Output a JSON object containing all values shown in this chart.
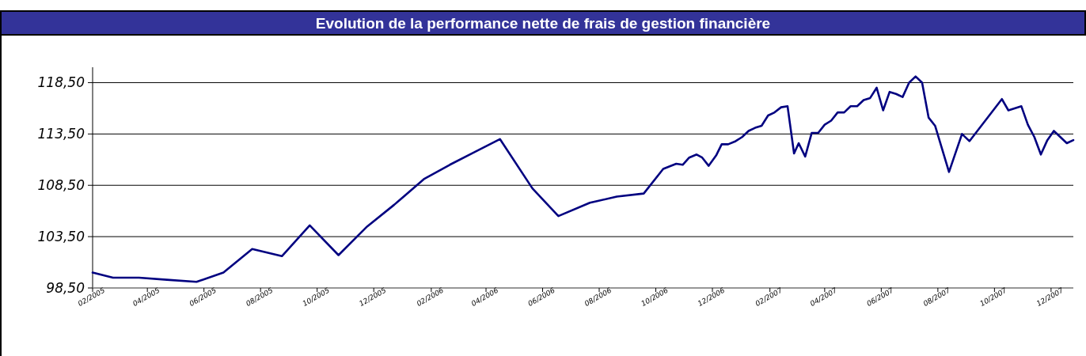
{
  "chart_data": {
    "type": "line",
    "title": "Evolution de la performance nette de frais de gestion financière",
    "x": [
      "2005-02-01",
      "2005-02-23",
      "2005-03-23",
      "2005-04-22",
      "2005-05-24",
      "2005-06-22",
      "2005-07-23",
      "2005-08-24",
      "2005-09-23",
      "2005-10-24",
      "2005-11-24",
      "2005-12-23",
      "2006-01-24",
      "2006-02-21",
      "2006-03-19",
      "2006-04-16",
      "2006-05-21",
      "2006-06-18",
      "2006-07-22",
      "2006-08-20",
      "2006-09-18",
      "2006-10-09",
      "2006-10-23",
      "2006-10-30",
      "2006-11-06",
      "2006-11-14",
      "2006-11-20",
      "2006-11-27",
      "2006-12-05",
      "2006-12-11",
      "2006-12-18",
      "2006-12-26",
      "2007-01-02",
      "2007-01-09",
      "2007-01-16",
      "2007-01-23",
      "2007-01-30",
      "2007-02-06",
      "2007-02-13",
      "2007-02-20",
      "2007-02-27",
      "2007-03-04",
      "2007-03-11",
      "2007-03-18",
      "2007-03-25",
      "2007-04-01",
      "2007-04-08",
      "2007-04-15",
      "2007-04-22",
      "2007-04-29",
      "2007-05-06",
      "2007-05-13",
      "2007-05-20",
      "2007-05-27",
      "2007-06-03",
      "2007-06-10",
      "2007-06-17",
      "2007-06-24",
      "2007-07-01",
      "2007-07-08",
      "2007-07-15",
      "2007-07-22",
      "2007-07-29",
      "2007-08-13",
      "2007-08-27",
      "2007-09-04",
      "2007-10-09",
      "2007-10-16",
      "2007-10-30",
      "2007-11-06",
      "2007-11-13",
      "2007-11-20",
      "2007-11-27",
      "2007-12-04",
      "2007-12-18",
      "2007-12-25"
    ],
    "series": [
      {
        "color": "#000080",
        "values": [
          100.0,
          99.5,
          99.5,
          99.3,
          99.1,
          100.0,
          102.3,
          101.6,
          104.6,
          101.7,
          104.5,
          106.6,
          109.1,
          110.5,
          111.7,
          113.0,
          108.2,
          105.5,
          106.8,
          107.4,
          107.7,
          110.1,
          110.6,
          110.5,
          111.2,
          111.5,
          111.2,
          110.4,
          111.4,
          112.5,
          112.5,
          112.8,
          113.2,
          113.8,
          114.1,
          114.3,
          115.3,
          115.6,
          116.1,
          116.2,
          111.6,
          112.6,
          111.3,
          113.6,
          113.6,
          114.4,
          114.8,
          115.6,
          115.6,
          116.2,
          116.2,
          116.8,
          117.0,
          118.0,
          115.8,
          117.6,
          117.4,
          117.1,
          118.5,
          119.1,
          118.5,
          115.1,
          114.3,
          109.8,
          113.5,
          112.8,
          116.9,
          115.8,
          116.2,
          114.4,
          113.2,
          111.5,
          112.9,
          113.8,
          112.6,
          112.9
        ]
      }
    ],
    "xlim": [
      "2005-02-01",
      "2007-12-25"
    ],
    "xticks": [
      {
        "value": "2005-02",
        "label": "02/2005"
      },
      {
        "value": "2005-04",
        "label": "04/2005"
      },
      {
        "value": "2005-06",
        "label": "06/2005"
      },
      {
        "value": "2005-08",
        "label": "08/2005"
      },
      {
        "value": "2005-10",
        "label": "10/2005"
      },
      {
        "value": "2005-12",
        "label": "12/2005"
      },
      {
        "value": "2006-02",
        "label": "02/2006"
      },
      {
        "value": "2006-04",
        "label": "04/2006"
      },
      {
        "value": "2006-06",
        "label": "06/2006"
      },
      {
        "value": "2006-08",
        "label": "08/2006"
      },
      {
        "value": "2006-10",
        "label": "10/2006"
      },
      {
        "value": "2006-12",
        "label": "12/2006"
      },
      {
        "value": "2007-02",
        "label": "02/2007"
      },
      {
        "value": "2007-04",
        "label": "04/2007"
      },
      {
        "value": "2007-06",
        "label": "06/2007"
      },
      {
        "value": "2007-08",
        "label": "08/2007"
      },
      {
        "value": "2007-10",
        "label": "10/2007"
      },
      {
        "value": "2007-12",
        "label": "12/2007"
      }
    ],
    "ylim": [
      98.5,
      120
    ],
    "yticks": [
      {
        "value": 98.5,
        "label": "98,50"
      },
      {
        "value": 103.5,
        "label": "103,50"
      },
      {
        "value": 108.5,
        "label": "108,50"
      },
      {
        "value": 113.5,
        "label": "113,50"
      },
      {
        "value": 118.5,
        "label": "118,50"
      }
    ],
    "grid": "y",
    "marker": "none",
    "line_style": "solid"
  }
}
